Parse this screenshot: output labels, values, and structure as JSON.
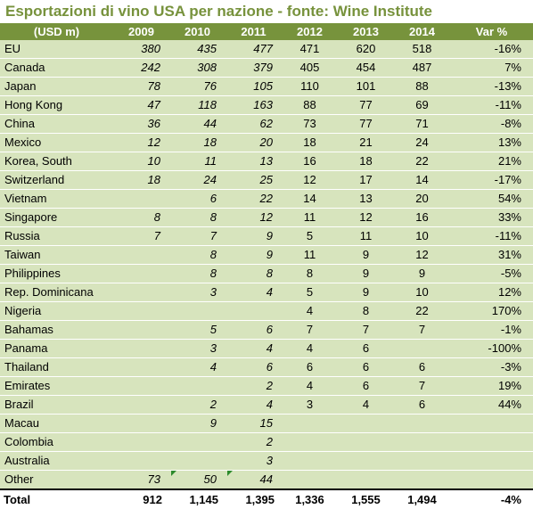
{
  "title": "Esportazioni di vino USA per nazione - fonte: Wine Institute",
  "headers": [
    "(USD m)",
    "2009",
    "2010",
    "2011",
    "2012",
    "2013",
    "2014",
    "Var %"
  ],
  "rows": [
    {
      "country": "EU",
      "values": [
        "380",
        "435",
        "477",
        "471",
        "620",
        "518"
      ],
      "var": "-16%"
    },
    {
      "country": "Canada",
      "values": [
        "242",
        "308",
        "379",
        "405",
        "454",
        "487"
      ],
      "var": "7%"
    },
    {
      "country": "Japan",
      "values": [
        "78",
        "76",
        "105",
        "110",
        "101",
        "88"
      ],
      "var": "-13%"
    },
    {
      "country": "Hong Kong",
      "values": [
        "47",
        "118",
        "163",
        "88",
        "77",
        "69"
      ],
      "var": "-11%"
    },
    {
      "country": "China",
      "values": [
        "36",
        "44",
        "62",
        "73",
        "77",
        "71"
      ],
      "var": "-8%"
    },
    {
      "country": "Mexico",
      "values": [
        "12",
        "18",
        "20",
        "18",
        "21",
        "24"
      ],
      "var": "13%"
    },
    {
      "country": "Korea, South",
      "values": [
        "10",
        "11",
        "13",
        "16",
        "18",
        "22"
      ],
      "var": "21%"
    },
    {
      "country": "Switzerland",
      "values": [
        "18",
        "24",
        "25",
        "12",
        "17",
        "14"
      ],
      "var": "-17%"
    },
    {
      "country": "Vietnam",
      "values": [
        "",
        "6",
        "22",
        "14",
        "13",
        "20"
      ],
      "var": "54%"
    },
    {
      "country": "Singapore",
      "values": [
        "8",
        "8",
        "12",
        "11",
        "12",
        "16"
      ],
      "var": "33%"
    },
    {
      "country": "Russia",
      "values": [
        "7",
        "7",
        "9",
        "5",
        "11",
        "10"
      ],
      "var": "-11%"
    },
    {
      "country": "Taiwan",
      "values": [
        "",
        "8",
        "9",
        "11",
        "9",
        "12"
      ],
      "var": "31%"
    },
    {
      "country": "Philippines",
      "values": [
        "",
        "8",
        "8",
        "8",
        "9",
        "9"
      ],
      "var": "-5%"
    },
    {
      "country": "Rep. Dominicana",
      "values": [
        "",
        "3",
        "4",
        "5",
        "9",
        "10"
      ],
      "var": "12%"
    },
    {
      "country": "Nigeria",
      "values": [
        "",
        "",
        "",
        "4",
        "8",
        "22"
      ],
      "var": "170%"
    },
    {
      "country": "Bahamas",
      "values": [
        "",
        "5",
        "6",
        "7",
        "7",
        "7"
      ],
      "var": "-1%"
    },
    {
      "country": "Panama",
      "values": [
        "",
        "3",
        "4",
        "4",
        "6",
        ""
      ],
      "var": "-100%"
    },
    {
      "country": "Thailand",
      "values": [
        "",
        "4",
        "6",
        "6",
        "6",
        "6"
      ],
      "var": "-3%"
    },
    {
      "country": "Emirates",
      "values": [
        "",
        "",
        "2",
        "4",
        "6",
        "7"
      ],
      "var": "19%"
    },
    {
      "country": "Brazil",
      "values": [
        "",
        "2",
        "4",
        "3",
        "4",
        "6"
      ],
      "var": "44%"
    },
    {
      "country": "Macau",
      "values": [
        "",
        "9",
        "15",
        "",
        "",
        ""
      ],
      "var": ""
    },
    {
      "country": "Colombia",
      "values": [
        "",
        "",
        "2",
        "",
        "",
        ""
      ],
      "var": ""
    },
    {
      "country": "Australia",
      "values": [
        "",
        "",
        "3",
        "",
        "",
        ""
      ],
      "var": ""
    },
    {
      "country": "Other",
      "values": [
        "73",
        "50",
        "44",
        "",
        "",
        ""
      ],
      "var": ""
    }
  ],
  "total": {
    "label": "Total",
    "values": [
      "912",
      "1,145",
      "1,395",
      "1,336",
      "1,555",
      "1,494"
    ],
    "var": "-4%"
  },
  "colors": {
    "title": "#77923c",
    "header_bg": "#77933c",
    "row_bg": "#d7e4bd",
    "marker": "#2c8a2c"
  }
}
